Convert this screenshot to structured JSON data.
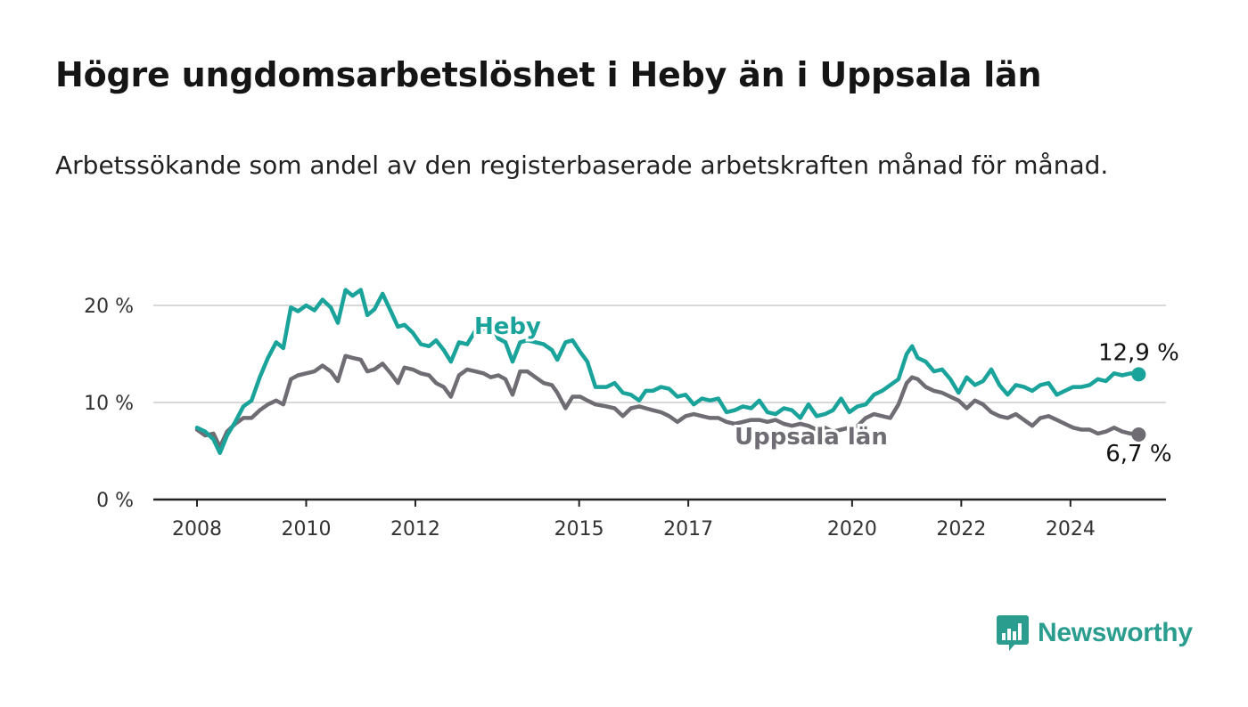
{
  "title": "Högre ungdomsarbetslöshet i Heby än i Uppsala län",
  "subtitle": "Arbetssökande som andel av den registerbaserade arbetskraften månad för månad.",
  "brand": {
    "name": "Newsworthy",
    "icon": "newsworthy-logo-icon",
    "color": "#2a9d8f"
  },
  "chart_data": {
    "type": "line",
    "title": "Högre ungdomsarbetslöshet i Heby än i Uppsala län",
    "subtitle": "Arbetssökande som andel av den registerbaserade arbetskraften månad för månad.",
    "xlabel": "",
    "ylabel": "",
    "ylim": [
      0,
      20
    ],
    "xlim": [
      2007.2,
      2025.75
    ],
    "grid": true,
    "x_ticks": [
      2008,
      2010,
      2012,
      2015,
      2017,
      2020,
      2022,
      2024
    ],
    "x_tick_labels": [
      "2008",
      "2010",
      "2012",
      "2015",
      "2017",
      "2020",
      "2022",
      "2024"
    ],
    "y_ticks": [
      0,
      10,
      20
    ],
    "y_tick_labels": [
      "0 %",
      "10 %",
      "20 %"
    ],
    "legend": "inline labels",
    "series": [
      {
        "name": "Heby",
        "color": "#1aa39a",
        "end_label": "12,9 %",
        "points": [
          [
            2008.0,
            7.4
          ],
          [
            2008.15,
            7.0
          ],
          [
            2008.3,
            6.2
          ],
          [
            2008.42,
            4.8
          ],
          [
            2008.55,
            6.6
          ],
          [
            2008.7,
            8.0
          ],
          [
            2008.85,
            9.6
          ],
          [
            2009.0,
            10.2
          ],
          [
            2009.15,
            12.6
          ],
          [
            2009.3,
            14.6
          ],
          [
            2009.45,
            16.2
          ],
          [
            2009.58,
            15.6
          ],
          [
            2009.72,
            19.8
          ],
          [
            2009.85,
            19.4
          ],
          [
            2010.0,
            20.0
          ],
          [
            2010.15,
            19.5
          ],
          [
            2010.3,
            20.6
          ],
          [
            2010.45,
            19.8
          ],
          [
            2010.58,
            18.2
          ],
          [
            2010.72,
            21.6
          ],
          [
            2010.85,
            21.0
          ],
          [
            2011.0,
            21.6
          ],
          [
            2011.12,
            19.0
          ],
          [
            2011.25,
            19.6
          ],
          [
            2011.4,
            21.2
          ],
          [
            2011.55,
            19.4
          ],
          [
            2011.68,
            17.8
          ],
          [
            2011.8,
            18.0
          ],
          [
            2011.95,
            17.2
          ],
          [
            2012.1,
            16.0
          ],
          [
            2012.25,
            15.8
          ],
          [
            2012.38,
            16.4
          ],
          [
            2012.52,
            15.4
          ],
          [
            2012.65,
            14.2
          ],
          [
            2012.8,
            16.2
          ],
          [
            2012.95,
            16.0
          ],
          [
            2013.1,
            17.4
          ],
          [
            2013.25,
            17.6
          ],
          [
            2013.38,
            18.2
          ],
          [
            2013.52,
            16.6
          ],
          [
            2013.65,
            16.2
          ],
          [
            2013.78,
            14.2
          ],
          [
            2013.92,
            16.2
          ],
          [
            2014.05,
            16.4
          ],
          [
            2014.35,
            16.0
          ],
          [
            2014.5,
            15.4
          ],
          [
            2014.6,
            14.4
          ],
          [
            2014.75,
            16.2
          ],
          [
            2014.88,
            16.4
          ],
          [
            2015.02,
            15.2
          ],
          [
            2015.15,
            14.2
          ],
          [
            2015.3,
            11.6
          ],
          [
            2015.5,
            11.6
          ],
          [
            2015.65,
            12.0
          ],
          [
            2015.8,
            11.0
          ],
          [
            2015.95,
            10.8
          ],
          [
            2016.1,
            10.2
          ],
          [
            2016.22,
            11.2
          ],
          [
            2016.35,
            11.2
          ],
          [
            2016.5,
            11.6
          ],
          [
            2016.65,
            11.4
          ],
          [
            2016.8,
            10.6
          ],
          [
            2016.95,
            10.8
          ],
          [
            2017.1,
            9.8
          ],
          [
            2017.25,
            10.4
          ],
          [
            2017.4,
            10.2
          ],
          [
            2017.55,
            10.4
          ],
          [
            2017.7,
            9.0
          ],
          [
            2017.85,
            9.2
          ],
          [
            2018.0,
            9.6
          ],
          [
            2018.15,
            9.4
          ],
          [
            2018.3,
            10.2
          ],
          [
            2018.45,
            9.0
          ],
          [
            2018.6,
            8.8
          ],
          [
            2018.75,
            9.4
          ],
          [
            2018.9,
            9.2
          ],
          [
            2019.05,
            8.4
          ],
          [
            2019.2,
            9.8
          ],
          [
            2019.35,
            8.6
          ],
          [
            2019.5,
            8.8
          ],
          [
            2019.65,
            9.2
          ],
          [
            2019.8,
            10.4
          ],
          [
            2019.95,
            9.0
          ],
          [
            2020.1,
            9.6
          ],
          [
            2020.25,
            9.8
          ],
          [
            2020.4,
            10.8
          ],
          [
            2020.55,
            11.2
          ],
          [
            2020.7,
            11.8
          ],
          [
            2020.85,
            12.4
          ],
          [
            2021.0,
            15.0
          ],
          [
            2021.1,
            15.8
          ],
          [
            2021.2,
            14.6
          ],
          [
            2021.35,
            14.2
          ],
          [
            2021.5,
            13.2
          ],
          [
            2021.65,
            13.4
          ],
          [
            2021.8,
            12.4
          ],
          [
            2021.95,
            11.0
          ],
          [
            2022.1,
            12.6
          ],
          [
            2022.25,
            11.8
          ],
          [
            2022.4,
            12.2
          ],
          [
            2022.55,
            13.4
          ],
          [
            2022.7,
            11.8
          ],
          [
            2022.85,
            10.8
          ],
          [
            2023.0,
            11.8
          ],
          [
            2023.15,
            11.6
          ],
          [
            2023.3,
            11.2
          ],
          [
            2023.45,
            11.8
          ],
          [
            2023.6,
            12.0
          ],
          [
            2023.75,
            10.8
          ],
          [
            2023.9,
            11.2
          ],
          [
            2024.05,
            11.6
          ],
          [
            2024.2,
            11.6
          ],
          [
            2024.35,
            11.8
          ],
          [
            2024.5,
            12.4
          ],
          [
            2024.65,
            12.2
          ],
          [
            2024.8,
            13.0
          ],
          [
            2024.95,
            12.8
          ],
          [
            2025.1,
            13.0
          ],
          [
            2025.25,
            12.9
          ]
        ]
      },
      {
        "name": "Uppsala län",
        "color": "#6f6d73",
        "end_label": "6,7 %",
        "points": [
          [
            2008.0,
            7.2
          ],
          [
            2008.15,
            6.6
          ],
          [
            2008.3,
            6.8
          ],
          [
            2008.42,
            5.4
          ],
          [
            2008.55,
            7.0
          ],
          [
            2008.7,
            7.8
          ],
          [
            2008.85,
            8.4
          ],
          [
            2009.0,
            8.4
          ],
          [
            2009.15,
            9.2
          ],
          [
            2009.3,
            9.8
          ],
          [
            2009.45,
            10.2
          ],
          [
            2009.58,
            9.8
          ],
          [
            2009.72,
            12.4
          ],
          [
            2009.85,
            12.8
          ],
          [
            2010.0,
            13.0
          ],
          [
            2010.15,
            13.2
          ],
          [
            2010.3,
            13.8
          ],
          [
            2010.45,
            13.2
          ],
          [
            2010.58,
            12.2
          ],
          [
            2010.72,
            14.8
          ],
          [
            2010.85,
            14.6
          ],
          [
            2011.0,
            14.4
          ],
          [
            2011.12,
            13.2
          ],
          [
            2011.25,
            13.4
          ],
          [
            2011.4,
            14.0
          ],
          [
            2011.55,
            13.0
          ],
          [
            2011.68,
            12.0
          ],
          [
            2011.8,
            13.6
          ],
          [
            2011.95,
            13.4
          ],
          [
            2012.1,
            13.0
          ],
          [
            2012.25,
            12.8
          ],
          [
            2012.38,
            12.0
          ],
          [
            2012.52,
            11.6
          ],
          [
            2012.65,
            10.6
          ],
          [
            2012.8,
            12.8
          ],
          [
            2012.95,
            13.4
          ],
          [
            2013.1,
            13.2
          ],
          [
            2013.25,
            13.0
          ],
          [
            2013.38,
            12.6
          ],
          [
            2013.52,
            12.8
          ],
          [
            2013.65,
            12.4
          ],
          [
            2013.78,
            10.8
          ],
          [
            2013.92,
            13.2
          ],
          [
            2014.05,
            13.2
          ],
          [
            2014.2,
            12.6
          ],
          [
            2014.35,
            12.0
          ],
          [
            2014.5,
            11.8
          ],
          [
            2014.6,
            11.0
          ],
          [
            2014.75,
            9.4
          ],
          [
            2014.88,
            10.6
          ],
          [
            2015.02,
            10.6
          ],
          [
            2015.15,
            10.2
          ],
          [
            2015.3,
            9.8
          ],
          [
            2015.5,
            9.6
          ],
          [
            2015.65,
            9.4
          ],
          [
            2015.8,
            8.6
          ],
          [
            2015.95,
            9.4
          ],
          [
            2016.1,
            9.6
          ],
          [
            2016.22,
            9.4
          ],
          [
            2016.35,
            9.2
          ],
          [
            2016.5,
            9.0
          ],
          [
            2016.65,
            8.6
          ],
          [
            2016.8,
            8.0
          ],
          [
            2016.95,
            8.6
          ],
          [
            2017.1,
            8.8
          ],
          [
            2017.25,
            8.6
          ],
          [
            2017.4,
            8.4
          ],
          [
            2017.55,
            8.4
          ],
          [
            2017.7,
            8.0
          ],
          [
            2017.85,
            7.8
          ],
          [
            2018.0,
            8.0
          ],
          [
            2018.15,
            8.2
          ],
          [
            2018.3,
            8.2
          ],
          [
            2018.45,
            8.0
          ],
          [
            2018.6,
            8.2
          ],
          [
            2018.75,
            7.8
          ],
          [
            2018.9,
            7.6
          ],
          [
            2019.05,
            7.8
          ],
          [
            2019.2,
            7.6
          ],
          [
            2019.35,
            7.2
          ],
          [
            2019.5,
            7.4
          ],
          [
            2019.65,
            7.0
          ],
          [
            2019.8,
            7.2
          ],
          [
            2019.95,
            7.4
          ],
          [
            2020.1,
            7.6
          ],
          [
            2020.25,
            8.4
          ],
          [
            2020.4,
            8.8
          ],
          [
            2020.55,
            8.6
          ],
          [
            2020.7,
            8.4
          ],
          [
            2020.85,
            9.8
          ],
          [
            2021.0,
            12.0
          ],
          [
            2021.1,
            12.6
          ],
          [
            2021.2,
            12.4
          ],
          [
            2021.35,
            11.6
          ],
          [
            2021.5,
            11.2
          ],
          [
            2021.65,
            11.0
          ],
          [
            2021.8,
            10.6
          ],
          [
            2021.95,
            10.2
          ],
          [
            2022.1,
            9.4
          ],
          [
            2022.25,
            10.2
          ],
          [
            2022.4,
            9.8
          ],
          [
            2022.55,
            9.0
          ],
          [
            2022.7,
            8.6
          ],
          [
            2022.85,
            8.4
          ],
          [
            2023.0,
            8.8
          ],
          [
            2023.15,
            8.2
          ],
          [
            2023.3,
            7.6
          ],
          [
            2023.45,
            8.4
          ],
          [
            2023.6,
            8.6
          ],
          [
            2023.75,
            8.2
          ],
          [
            2023.9,
            7.8
          ],
          [
            2024.05,
            7.4
          ],
          [
            2024.2,
            7.2
          ],
          [
            2024.35,
            7.2
          ],
          [
            2024.5,
            6.8
          ],
          [
            2024.65,
            7.0
          ],
          [
            2024.8,
            7.4
          ],
          [
            2024.95,
            7.0
          ],
          [
            2025.1,
            6.8
          ],
          [
            2025.25,
            6.7
          ]
        ]
      }
    ]
  }
}
